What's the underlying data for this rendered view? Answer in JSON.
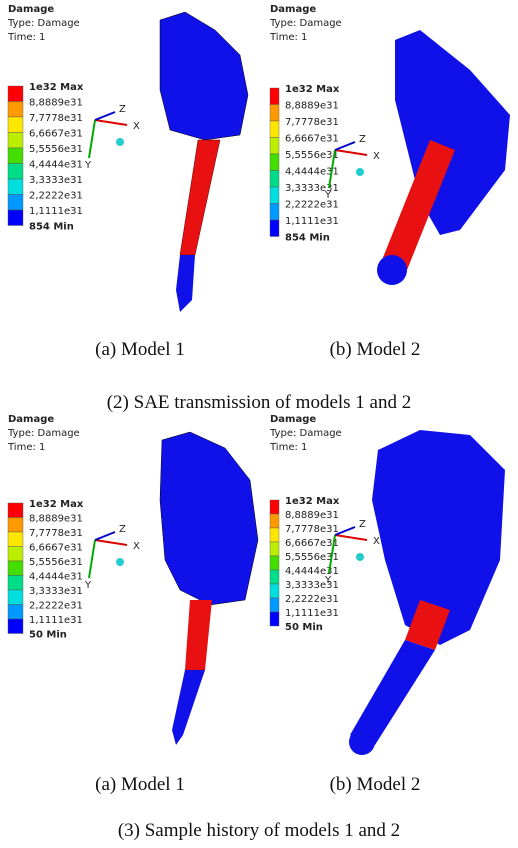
{
  "sections": [
    {
      "caption": "(2) SAE transmission of models 1 and 2",
      "panels": [
        {
          "title": "Damage",
          "type_line": "Type: Damage",
          "time_line": "Time: 1",
          "legend": [
            "1e32 Max",
            "8,8889e31",
            "7,7778e31",
            "6,6667e31",
            "5,5556e31",
            "4,4444e31",
            "3,3333e31",
            "2,2222e31",
            "1,1111e31",
            "854 Min"
          ],
          "axes": [
            "X",
            "Y",
            "Z"
          ],
          "label": "(a) Model 1"
        },
        {
          "title": "Damage",
          "type_line": "Type: Damage",
          "time_line": "Time: 1",
          "legend": [
            "1e32 Max",
            "8,8889e31",
            "7,7778e31",
            "6,6667e31",
            "5,5556e31",
            "4,4444e31",
            "3,3333e31",
            "2,2222e31",
            "1,1111e31",
            "854 Min"
          ],
          "axes": [
            "X",
            "Y",
            "Z"
          ],
          "label": "(b) Model 2"
        }
      ]
    },
    {
      "caption": "(3) Sample history of models 1 and 2",
      "panels": [
        {
          "title": "Damage",
          "type_line": "Type: Damage",
          "time_line": "Time: 1",
          "legend": [
            "1e32 Max",
            "8,8889e31",
            "7,7778e31",
            "6,6667e31",
            "5,5556e31",
            "4,4444e31",
            "3,3333e31",
            "2,2222e31",
            "1,1111e31",
            "50 Min"
          ],
          "axes": [
            "X",
            "Y",
            "Z"
          ],
          "label": "(a) Model 1"
        },
        {
          "title": "Damage",
          "type_line": "Type: Damage",
          "time_line": "Time: 1",
          "legend": [
            "1e32 Max",
            "8,8889e31",
            "7,7778e31",
            "6,6667e31",
            "5,5556e31",
            "4,4444e31",
            "3,3333e31",
            "2,2222e31",
            "1,1111e31",
            "50 Min"
          ],
          "axes": [
            "X",
            "Y",
            "Z"
          ],
          "label": "(b) Model 2"
        }
      ]
    }
  ]
}
